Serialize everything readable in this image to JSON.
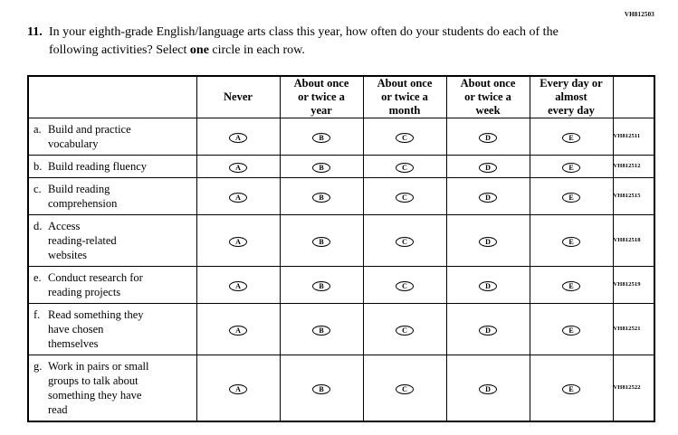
{
  "page": {
    "top_code": "VH812503"
  },
  "question": {
    "number": "11.",
    "text_before": "In your eighth-grade English/language arts class this year, how often do your students do each of the following activities? Select ",
    "bold_word": "one",
    "text_after": " circle in each row."
  },
  "table": {
    "columns": [
      "Never",
      "About once\nor twice a\nyear",
      "About once\nor twice a\nmonth",
      "About once\nor twice a\nweek",
      "Every day or\nalmost\nevery day"
    ],
    "bubble_letters": [
      "A",
      "B",
      "C",
      "D",
      "E"
    ],
    "rows": [
      {
        "letter": "a.",
        "text": "Build and practice\nvocabulary",
        "code": "VH812511"
      },
      {
        "letter": "b.",
        "text": "Build reading fluency",
        "code": "VH812512"
      },
      {
        "letter": "c.",
        "text": "Build reading\ncomprehension",
        "code": "VH812515"
      },
      {
        "letter": "d.",
        "text": "Access\nreading-related\nwebsites",
        "code": "VH812518"
      },
      {
        "letter": "e.",
        "text": "Conduct research for\nreading projects",
        "code": "VH812519"
      },
      {
        "letter": "f.",
        "text": "Read something they\nhave chosen\nthemselves",
        "code": "VH812521"
      },
      {
        "letter": "g.",
        "text": "Work in pairs or small\ngroups to talk about\nsomething they have\nread",
        "code": "VH812522"
      }
    ]
  }
}
